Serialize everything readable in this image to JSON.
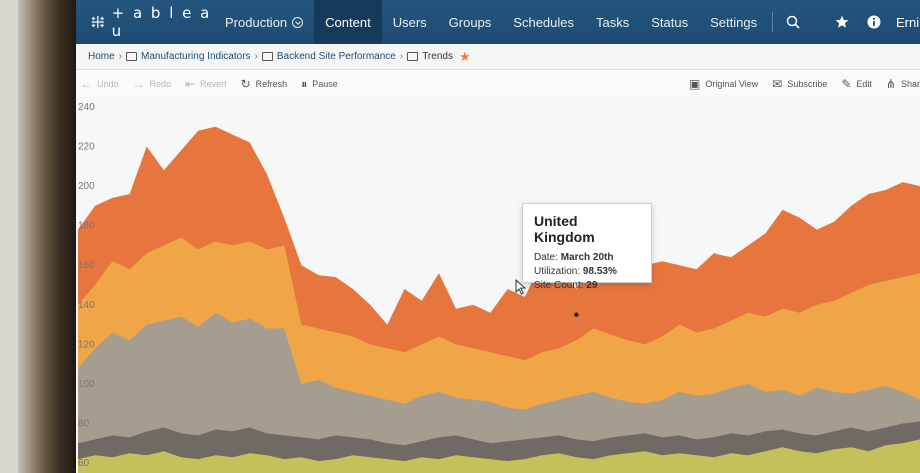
{
  "app": {
    "logo_text": "+ a b l e a u",
    "user_label": "Erni"
  },
  "nav": {
    "items": [
      {
        "label": "Production",
        "name": "nav-production"
      },
      {
        "label": "Content",
        "name": "nav-content",
        "active": true
      },
      {
        "label": "Users",
        "name": "nav-users"
      },
      {
        "label": "Groups",
        "name": "nav-groups"
      },
      {
        "label": "Schedules",
        "name": "nav-schedules"
      },
      {
        "label": "Tasks",
        "name": "nav-tasks"
      },
      {
        "label": "Status",
        "name": "nav-status"
      },
      {
        "label": "Settings",
        "name": "nav-settings"
      }
    ]
  },
  "breadcrumb": {
    "home": "Home",
    "project": "Manufacturing Indicators",
    "workbook": "Backend Site Performance",
    "view": "Trends"
  },
  "toolbar": {
    "undo": "Undo",
    "redo": "Redo",
    "revert": "Revert",
    "refresh": "Refresh",
    "pause": "Pause",
    "original_view": "Original View",
    "subscribe": "Subscribe",
    "edit": "Edit",
    "share": "Shar"
  },
  "tooltip": {
    "title": "United Kingdom",
    "date_label": "Date:",
    "date_value": "March 20th",
    "util_label": "Utilization:",
    "util_value": "98.53%",
    "site_label": "Site Count:",
    "site_value": "29"
  },
  "colors": {
    "nav_bg": "#1f4e79",
    "accent_star": "#f0803c"
  },
  "chart_data": {
    "type": "area",
    "title": "",
    "xlabel": "",
    "ylabel": "",
    "ylim": [
      55,
      245
    ],
    "y_ticks": [
      60,
      80,
      100,
      120,
      140,
      160,
      180,
      200,
      220,
      240
    ],
    "stacked": true,
    "series": [
      {
        "color": "#c4c05a",
        "values": [
          62,
          64,
          63,
          65,
          64,
          66,
          63,
          62,
          64,
          63,
          65,
          64,
          62,
          63,
          61,
          62,
          64,
          63,
          62,
          61,
          63,
          62,
          64,
          63,
          62,
          61,
          62,
          64,
          65,
          63,
          62,
          64,
          65,
          66,
          64,
          65,
          64,
          63,
          65,
          64,
          66,
          68,
          66,
          65,
          67,
          68,
          66,
          69,
          70,
          72
        ]
      },
      {
        "color": "#6f6a63",
        "values": [
          70,
          72,
          74,
          73,
          76,
          78,
          75,
          74,
          77,
          76,
          78,
          75,
          74,
          73,
          72,
          74,
          73,
          72,
          70,
          69,
          71,
          73,
          74,
          72,
          70,
          71,
          72,
          73,
          74,
          72,
          71,
          73,
          74,
          75,
          73,
          74,
          72,
          73,
          75,
          74,
          76,
          77,
          75,
          74,
          76,
          78,
          76,
          78,
          80,
          81
        ]
      },
      {
        "color": "#a59d90",
        "values": [
          108,
          118,
          126,
          122,
          130,
          132,
          134,
          129,
          136,
          131,
          133,
          128,
          128,
          100,
          102,
          98,
          96,
          94,
          92,
          90,
          94,
          96,
          93,
          92,
          91,
          88,
          87,
          90,
          92,
          94,
          96,
          93,
          91,
          90,
          92,
          96,
          94,
          95,
          98,
          100,
          96,
          97,
          94,
          98,
          96,
          95,
          97,
          99,
          96,
          92
        ]
      },
      {
        "color": "#f0a546",
        "values": [
          140,
          150,
          162,
          158,
          166,
          170,
          174,
          168,
          172,
          170,
          172,
          168,
          170,
          130,
          128,
          126,
          124,
          120,
          118,
          116,
          120,
          124,
          120,
          118,
          116,
          114,
          112,
          116,
          118,
          122,
          128,
          125,
          122,
          120,
          124,
          130,
          126,
          128,
          132,
          136,
          134,
          138,
          136,
          140,
          142,
          146,
          150,
          152,
          154,
          156
        ]
      },
      {
        "color": "#e7763e",
        "values": [
          178,
          190,
          194,
          196,
          220,
          208,
          218,
          228,
          230,
          226,
          222,
          206,
          184,
          160,
          155,
          154,
          148,
          140,
          130,
          148,
          142,
          156,
          138,
          140,
          136,
          148,
          144,
          162,
          158,
          148,
          162,
          156,
          154,
          160,
          162,
          160,
          158,
          166,
          164,
          170,
          176,
          188,
          184,
          178,
          182,
          190,
          196,
          198,
          202,
          200
        ]
      }
    ]
  }
}
